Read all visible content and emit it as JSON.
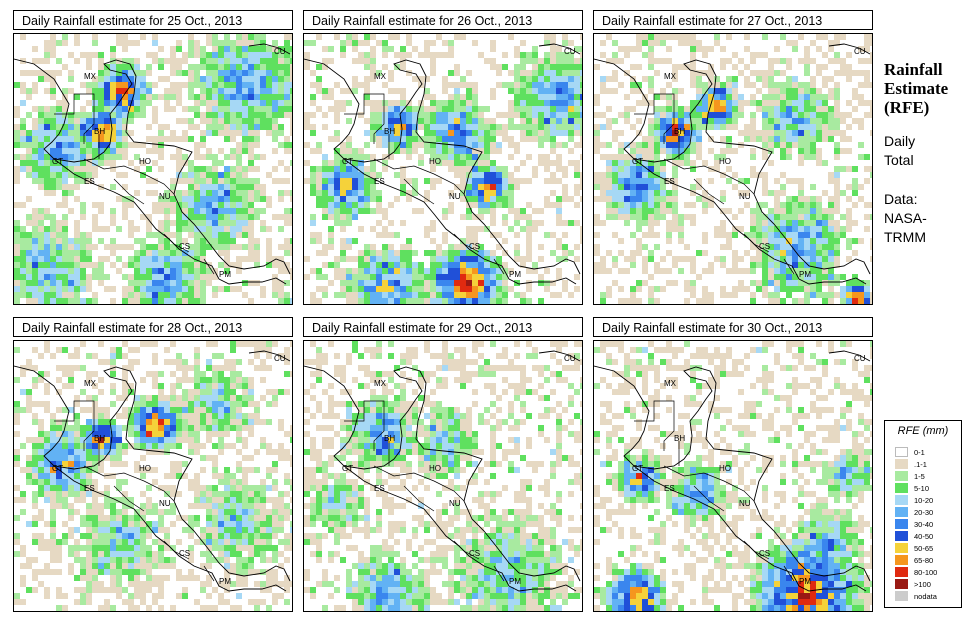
{
  "panels": [
    {
      "title": "Daily Rainfall estimate for  25 Oct., 2013"
    },
    {
      "title": "Daily Rainfall estimate for  26 Oct., 2013"
    },
    {
      "title": "Daily Rainfall estimate for  27 Oct., 2013"
    },
    {
      "title": "Daily Rainfall estimate for  28 Oct., 2013"
    },
    {
      "title": "Daily Rainfall estimate for  29 Oct., 2013"
    },
    {
      "title": "Daily Rainfall estimate for  30 Oct., 2013"
    }
  ],
  "country_labels": [
    "CU",
    "MX",
    "BH",
    "GT",
    "HO",
    "ES",
    "NU",
    "CS",
    "PM"
  ],
  "side": {
    "title_line1": "Rainfall",
    "title_line2": "Estimate",
    "title_line3": "(RFE)",
    "daily": "Daily",
    "total": "Total",
    "data_label": "Data:",
    "source1": "NASA-",
    "source2": "TRMM"
  },
  "legend": {
    "title": "RFE (mm)",
    "entries": [
      {
        "label": "0-1",
        "color": "#ffffff"
      },
      {
        "label": ".1-1",
        "color": "#e6d9c3"
      },
      {
        "label": "1-5",
        "color": "#a8eaa0"
      },
      {
        "label": "5-10",
        "color": "#5fe05f"
      },
      {
        "label": "10-20",
        "color": "#a6d8f5"
      },
      {
        "label": "20-30",
        "color": "#62b2f4"
      },
      {
        "label": "30-40",
        "color": "#3a86ee"
      },
      {
        "label": "40-50",
        "color": "#2050d8"
      },
      {
        "label": "50-65",
        "color": "#f5d23a"
      },
      {
        "label": "65-80",
        "color": "#f5961e"
      },
      {
        "label": "80-100",
        "color": "#e02a10"
      },
      {
        "label": ">100",
        "color": "#9a1a14"
      },
      {
        "label": "nodata",
        "color": "#cccccc"
      }
    ]
  }
}
